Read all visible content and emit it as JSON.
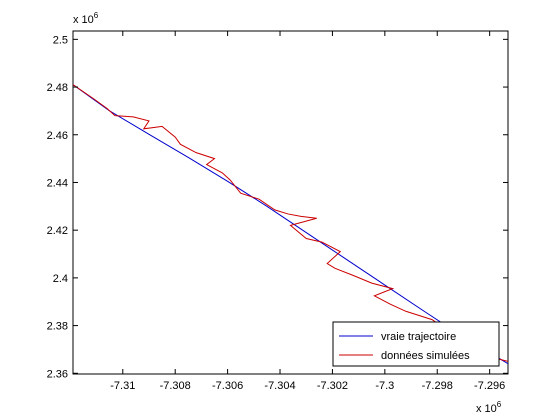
{
  "chart_data": {
    "type": "line",
    "title": "",
    "xlabel": "",
    "ylabel": "",
    "x_exponent_label": "x 10",
    "x_exponent_power": "6",
    "y_exponent_label": "x 10",
    "y_exponent_power": "6",
    "xlim": [
      -7.3119,
      -7.2953
    ],
    "ylim": [
      2.3597,
      2.5035
    ],
    "x_ticks": [
      -7.31,
      -7.308,
      -7.306,
      -7.304,
      -7.302,
      -7.3,
      -7.298,
      -7.296
    ],
    "x_tick_labels": [
      "-7.31",
      "-7.308",
      "-7.306",
      "-7.304",
      "-7.302",
      "-7.3",
      "-7.298",
      "-7.296"
    ],
    "y_ticks": [
      2.36,
      2.38,
      2.4,
      2.42,
      2.44,
      2.46,
      2.48,
      2.5
    ],
    "y_tick_labels": [
      "2.36",
      "2.38",
      "2.4",
      "2.42",
      "2.44",
      "2.46",
      "2.48",
      "2.5"
    ],
    "grid": false,
    "legend_position": "bottom-right",
    "series": [
      {
        "name": "vraie trajectoire",
        "color": "#0000cc",
        "x": [
          -7.3119,
          -7.3105,
          -7.309,
          -7.3075,
          -7.306,
          -7.3045,
          -7.303,
          -7.3015,
          -7.3,
          -7.2985,
          -7.297,
          -7.2953
        ],
        "y": [
          2.481,
          2.47,
          2.4602,
          2.4505,
          2.4405,
          2.43,
          2.419,
          2.408,
          2.397,
          2.386,
          2.3752,
          2.364
        ]
      },
      {
        "name": "données simulées",
        "color": "#cc0000",
        "x": [
          -7.3119,
          -7.3111,
          -7.3106,
          -7.3103,
          -7.3096,
          -7.309,
          -7.3092,
          -7.3085,
          -7.308,
          -7.3078,
          -7.3072,
          -7.3065,
          -7.3068,
          -7.3062,
          -7.3059,
          -7.3055,
          -7.3048,
          -7.3042,
          -7.3037,
          -7.3032,
          -7.3026,
          -7.3036,
          -7.303,
          -7.3024,
          -7.3017,
          -7.3022,
          -7.3019,
          -7.3012,
          -7.3005,
          -7.2997,
          -7.3004,
          -7.2998,
          -7.2992,
          -7.2982,
          -7.2976,
          -7.297,
          -7.2962,
          -7.2953
        ],
        "y": [
          2.481,
          2.475,
          2.471,
          2.468,
          2.4675,
          2.4658,
          2.4625,
          2.4635,
          2.459,
          2.456,
          2.4525,
          2.45,
          2.4475,
          2.444,
          2.441,
          2.4355,
          2.433,
          2.4285,
          2.4268,
          2.4258,
          2.425,
          2.422,
          2.4165,
          2.415,
          2.411,
          2.406,
          2.404,
          2.401,
          2.3978,
          2.3955,
          2.3925,
          2.389,
          2.386,
          2.3825,
          2.378,
          2.3735,
          2.3675,
          2.365
        ]
      }
    ]
  }
}
